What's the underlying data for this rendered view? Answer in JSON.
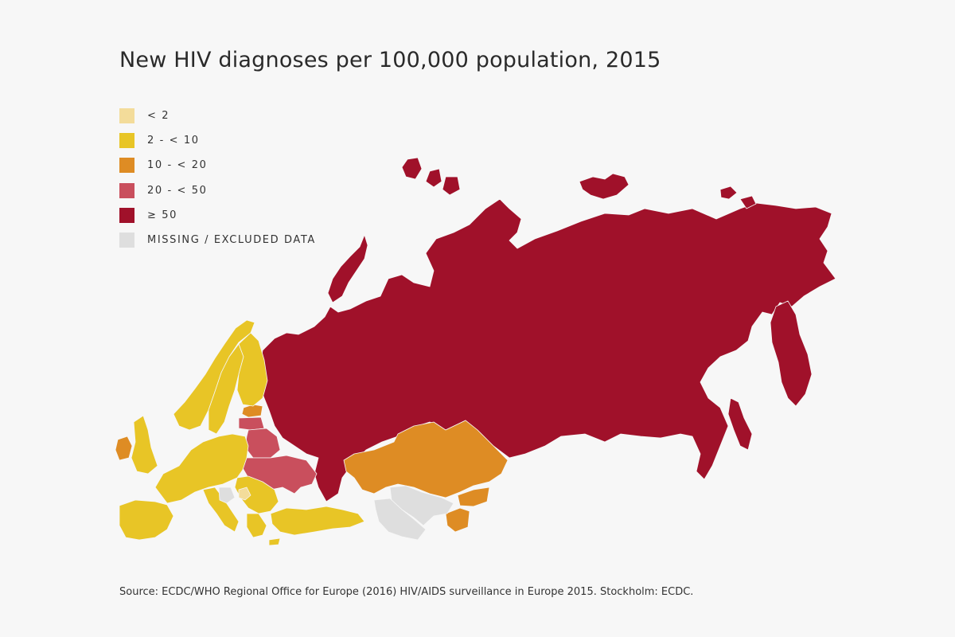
{
  "title": "New HIV diagnoses per 100,000 population, 2015",
  "legend": {
    "items": [
      {
        "label": "< 2",
        "color": "#f3dc9a"
      },
      {
        "label": "2 - < 10",
        "color": "#e8c526"
      },
      {
        "label": "10 - < 20",
        "color": "#de8c24"
      },
      {
        "label": "20 - < 50",
        "color": "#c94f5d"
      },
      {
        "label": "≥ 50",
        "color": "#a0112a"
      },
      {
        "label": "MISSING / EXCLUDED DATA",
        "color": "#dedede"
      }
    ]
  },
  "map": {
    "regions": [
      {
        "name": "Russia",
        "category": "≥ 50"
      },
      {
        "name": "Ukraine",
        "category": "20 - < 50"
      },
      {
        "name": "Belarus",
        "category": "20 - < 50"
      },
      {
        "name": "Latvia",
        "category": "20 - < 50"
      },
      {
        "name": "Estonia",
        "category": "10 - < 20"
      },
      {
        "name": "Kazakhstan",
        "category": "10 - < 20"
      },
      {
        "name": "Kyrgyzstan",
        "category": "10 - < 20"
      },
      {
        "name": "Tajikistan",
        "category": "10 - < 20"
      },
      {
        "name": "Ireland",
        "category": "10 - < 20"
      },
      {
        "name": "Uzbekistan",
        "category": "MISSING / EXCLUDED DATA"
      },
      {
        "name": "Turkmenistan",
        "category": "MISSING / EXCLUDED DATA"
      },
      {
        "name": "Austria",
        "category": "MISSING / EXCLUDED DATA"
      },
      {
        "name": "Norway",
        "category": "2 - < 10"
      },
      {
        "name": "Sweden",
        "category": "2 - < 10"
      },
      {
        "name": "Finland",
        "category": "2 - < 10"
      },
      {
        "name": "United Kingdom",
        "category": "2 - < 10"
      },
      {
        "name": "Western and Central Europe",
        "category": "2 - < 10"
      },
      {
        "name": "Spain and Portugal",
        "category": "2 - < 10"
      },
      {
        "name": "Italy",
        "category": "2 - < 10"
      },
      {
        "name": "Balkans",
        "category": "2 - < 10"
      },
      {
        "name": "Greece",
        "category": "2 - < 10"
      },
      {
        "name": "Turkey",
        "category": "2 - < 10"
      },
      {
        "name": "Bosnia",
        "category": "< 2"
      }
    ]
  },
  "source": "Source: ECDC/WHO Regional Office for Europe (2016) HIV/AIDS surveillance in Europe 2015. Stockholm: ECDC."
}
